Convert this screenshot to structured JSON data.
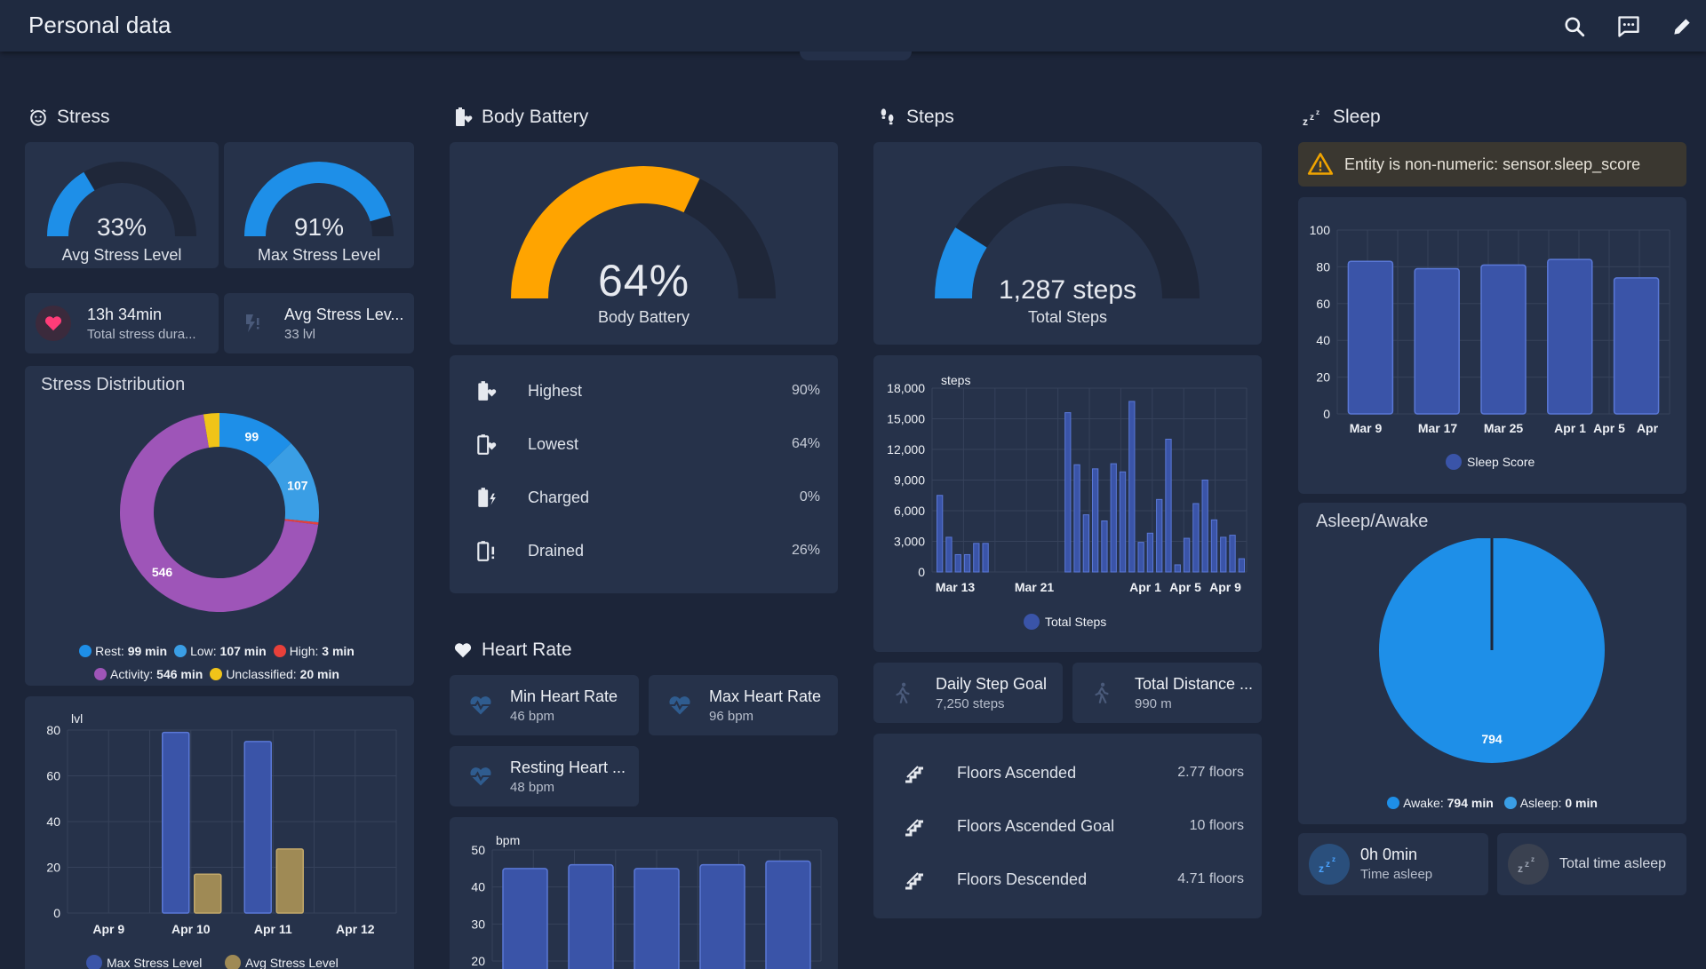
{
  "header": {
    "title": "Personal data"
  },
  "colors": {
    "background": "#1c2539",
    "card": "#26324a",
    "stress_blue": "#1e8fe8",
    "battery_orange": "#ffa400",
    "bar_blue": "#3a54a8",
    "bar_gold": "#9f8a55",
    "rest": "#1e8fe8",
    "low": "#3a9ee5",
    "high": "#e8403a",
    "activity": "#9e55b8",
    "unclassified": "#f0c419"
  },
  "stress": {
    "title": "Stress",
    "avg_gauge": {
      "value": "33%",
      "label": "Avg Stress Level",
      "fraction": 0.33
    },
    "max_gauge": {
      "value": "91%",
      "label": "Max Stress Level",
      "fraction": 0.91
    },
    "duration_tile": {
      "name": "13h 34min",
      "sub": "Total stress dura..."
    },
    "avg_tile": {
      "name": "Avg Stress Lev...",
      "sub": "33 lvl"
    },
    "distribution": {
      "title": "Stress Distribution",
      "segments": [
        {
          "name": "Rest",
          "value": 99,
          "label": "99",
          "color": "#1e8fe8"
        },
        {
          "name": "Low",
          "value": 107,
          "label": "107",
          "color": "#3a9ee5"
        },
        {
          "name": "High",
          "value": 3,
          "label": "",
          "color": "#e8403a"
        },
        {
          "name": "Activity",
          "value": 546,
          "label": "546",
          "color": "#9e55b8"
        },
        {
          "name": "Unclassified",
          "value": 20,
          "label": "",
          "color": "#f0c419"
        }
      ],
      "legend": [
        {
          "name": "Rest:",
          "value": "99 min",
          "color": "#1e8fe8"
        },
        {
          "name": "Low:",
          "value": "107 min",
          "color": "#3a9ee5"
        },
        {
          "name": "High:",
          "value": "3 min",
          "color": "#e8403a"
        },
        {
          "name": "Activity:",
          "value": "546 min",
          "color": "#9e55b8"
        },
        {
          "name": "Unclassified:",
          "value": "20 min",
          "color": "#f0c419"
        }
      ]
    }
  },
  "body_battery": {
    "title": "Body Battery",
    "gauge": {
      "value": "64%",
      "label": "Body Battery",
      "fraction": 0.64
    },
    "rows": [
      {
        "label": "Highest",
        "value": "90%",
        "icon": "battery-heart-icon"
      },
      {
        "label": "Lowest",
        "value": "64%",
        "icon": "battery-heart-outline-icon"
      },
      {
        "label": "Charged",
        "value": "0%",
        "icon": "battery-charging-icon"
      },
      {
        "label": "Drained",
        "value": "26%",
        "icon": "battery-alert-icon"
      }
    ]
  },
  "heart_rate": {
    "title": "Heart Rate",
    "tiles": [
      {
        "name": "Min Heart Rate",
        "sub": "46 bpm"
      },
      {
        "name": "Max Heart Rate",
        "sub": "96 bpm"
      },
      {
        "name": "Resting Heart ...",
        "sub": "48 bpm"
      }
    ]
  },
  "steps": {
    "title": "Steps",
    "gauge": {
      "value": "1,287 steps",
      "label": "Total Steps",
      "fraction": 0.18
    },
    "tiles": [
      {
        "name": "Daily Step Goal",
        "sub": "7,250 steps"
      },
      {
        "name": "Total Distance ...",
        "sub": "990 m"
      }
    ],
    "floors": [
      {
        "label": "Floors Ascended",
        "value": "2.77 floors"
      },
      {
        "label": "Floors Ascended Goal",
        "value": "10 floors"
      },
      {
        "label": "Floors Descended",
        "value": "4.71 floors"
      }
    ]
  },
  "sleep": {
    "title": "Sleep",
    "warning": "Entity is non-numeric: sensor.sleep_score",
    "asleep_awake": {
      "title": "Asleep/Awake"
    },
    "tiles": [
      {
        "name": "0h 0min",
        "sub": "Time asleep"
      },
      {
        "name": "",
        "sub": "Total time asleep"
      }
    ]
  },
  "chart_data": [
    {
      "id": "stress_levels",
      "type": "bar",
      "ylabel": "lvl",
      "ylim": [
        0,
        80
      ],
      "yticks": [
        0,
        20,
        40,
        60,
        80
      ],
      "categories": [
        "Apr 9",
        "Apr 10",
        "Apr 11",
        "Apr 12"
      ],
      "series": [
        {
          "name": "Max Stress Level",
          "color": "#3a54a8",
          "values": [
            null,
            79,
            75,
            null
          ]
        },
        {
          "name": "Avg Stress Level",
          "color": "#9f8a55",
          "values": [
            null,
            17,
            28,
            null
          ]
        }
      ]
    },
    {
      "id": "steps_history",
      "type": "bar",
      "ylabel": "steps",
      "ylim": [
        0,
        18000
      ],
      "yticks": [
        0,
        3000,
        6000,
        9000,
        12000,
        15000,
        18000
      ],
      "tick_labels": [
        "0",
        "3,000",
        "6,000",
        "9,000",
        "12,000",
        "15,000",
        "18,000"
      ],
      "xticks": [
        "Mar 13",
        "Mar 21",
        "Apr 1",
        "Apr 5",
        "Apr 9"
      ],
      "series": [
        {
          "name": "Total Steps",
          "color": "#3a54a8",
          "values": [
            7500,
            3400,
            1700,
            1700,
            2800,
            2800,
            0,
            0,
            0,
            0,
            0,
            0,
            0,
            0,
            15600,
            10500,
            5600,
            10100,
            5000,
            10600,
            9800,
            16700,
            2900,
            3800,
            7100,
            13000,
            700,
            3300,
            6700,
            9000,
            5100,
            3400,
            3600,
            1300
          ]
        }
      ]
    },
    {
      "id": "heart_rate_history",
      "type": "bar",
      "ylabel": "bpm",
      "ylim": [
        20,
        50
      ],
      "yticks": [
        20,
        30,
        40,
        50
      ],
      "series": [
        {
          "name": "Heart Rate",
          "color": "#3a54a8",
          "values": [
            45,
            46,
            45,
            46,
            47
          ]
        }
      ]
    },
    {
      "id": "sleep_score",
      "type": "bar",
      "ylim": [
        0,
        100
      ],
      "yticks": [
        0,
        20,
        40,
        60,
        80,
        100
      ],
      "xticks": [
        "Mar 9",
        "Mar 17",
        "Mar 25",
        "Apr 1",
        "Apr 5",
        "Apr"
      ],
      "series": [
        {
          "name": "Sleep Score",
          "color": "#3a54a8",
          "values": [
            83,
            79,
            81,
            84,
            74
          ]
        }
      ]
    },
    {
      "id": "asleep_awake",
      "type": "pie",
      "slices": [
        {
          "name": "Awake:",
          "value": 794,
          "value_label": "794 min",
          "label": "794",
          "color": "#1e8fe8"
        },
        {
          "name": "Asleep:",
          "value": 0,
          "value_label": "0 min",
          "color": "#3a9ee5"
        }
      ]
    }
  ]
}
